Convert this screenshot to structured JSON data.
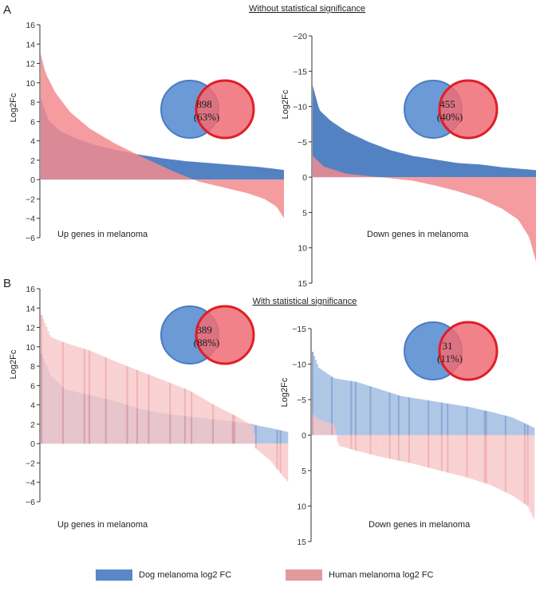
{
  "panels": [
    {
      "label": "A",
      "title": "Without statistical significance"
    },
    {
      "label": "B",
      "title": "With statistical significance"
    }
  ],
  "legend": {
    "dog": {
      "label": "Dog melanoma log2 FC",
      "color": "#5a87c6"
    },
    "human": {
      "label": "Human melanoma log2 FC",
      "color": "#e39a9c"
    }
  },
  "chart_data": [
    {
      "id": "A-up",
      "type": "area",
      "panel": "A",
      "ylabel": "Log2Fc",
      "xlabel": "Up genes in melanoma",
      "ylim": [
        -6,
        16
      ],
      "yticks": [
        -6,
        -4,
        -2,
        0,
        2,
        4,
        6,
        8,
        10,
        12,
        14,
        16
      ],
      "invert_y": false,
      "venn": {
        "line1": "898",
        "line2": "(63%)"
      },
      "series": [
        {
          "name": "Dog melanoma log2 FC",
          "x": [
            0,
            0.03,
            0.08,
            0.15,
            0.22,
            0.3,
            0.4,
            0.5,
            0.6,
            0.7,
            0.8,
            0.9,
            1.0
          ],
          "values": [
            8.5,
            6.2,
            5.0,
            4.2,
            3.6,
            3.1,
            2.6,
            2.2,
            1.9,
            1.7,
            1.5,
            1.3,
            1.0
          ]
        },
        {
          "name": "Human melanoma log2 FC",
          "x": [
            0,
            0.02,
            0.06,
            0.12,
            0.2,
            0.3,
            0.42,
            0.55,
            0.65,
            0.75,
            0.85,
            0.92,
            0.97,
            1.0
          ],
          "values": [
            13.0,
            11.0,
            9.0,
            7.0,
            5.3,
            3.8,
            2.3,
            0.8,
            -0.2,
            -0.8,
            -1.4,
            -2.0,
            -2.8,
            -4.0
          ]
        }
      ]
    },
    {
      "id": "A-down",
      "type": "area",
      "panel": "A",
      "ylabel": "Log2Fc",
      "xlabel": "Down genes in melanoma",
      "ylim": [
        -20,
        15
      ],
      "yticks": [
        -20,
        -15,
        -10,
        -5,
        0,
        5,
        10,
        15
      ],
      "invert_y": true,
      "venn": {
        "line1": "455",
        "line2": "(40%)"
      },
      "series": [
        {
          "name": "Dog melanoma log2 FC",
          "x": [
            0,
            0.03,
            0.08,
            0.15,
            0.25,
            0.35,
            0.45,
            0.55,
            0.65,
            0.75,
            0.85,
            1.0
          ],
          "values": [
            -13,
            -9.5,
            -8,
            -6.5,
            -5,
            -3.8,
            -3,
            -2.5,
            -2,
            -1.8,
            -1.4,
            -1.0
          ]
        },
        {
          "name": "Human melanoma log2 FC",
          "x": [
            0,
            0.05,
            0.15,
            0.3,
            0.45,
            0.55,
            0.65,
            0.75,
            0.85,
            0.92,
            0.97,
            1.0
          ],
          "values": [
            -3,
            -1.5,
            -0.5,
            0,
            0.5,
            1.2,
            2,
            3,
            4.5,
            6,
            8.5,
            12
          ]
        }
      ]
    },
    {
      "id": "B-up",
      "type": "bar",
      "panel": "B",
      "ylabel": "Log2Fc",
      "xlabel": "Up genes in melanoma",
      "ylim": [
        -6,
        16
      ],
      "yticks": [
        -6,
        -4,
        -2,
        0,
        2,
        4,
        6,
        8,
        10,
        12,
        14,
        16
      ],
      "invert_y": false,
      "venn": {
        "line1": "389",
        "line2": "(88%)"
      },
      "series": [
        {
          "name": "Dog melanoma log2 FC",
          "x": [
            0,
            0.04,
            0.1,
            0.2,
            0.3,
            0.4,
            0.5,
            0.6,
            0.7,
            0.8,
            0.86,
            0.87,
            0.93,
            1.0
          ],
          "values": [
            9.5,
            7,
            5.6,
            5.0,
            4.4,
            3.6,
            3.1,
            2.8,
            2.5,
            2.2,
            2.0,
            1.9,
            1.6,
            1.2
          ]
        },
        {
          "name": "Human melanoma log2 FC",
          "x": [
            0,
            0.04,
            0.1,
            0.2,
            0.3,
            0.4,
            0.5,
            0.6,
            0.7,
            0.8,
            0.86,
            0.87,
            0.93,
            1.0
          ],
          "values": [
            13.5,
            11,
            10.4,
            9.6,
            8.5,
            7.5,
            6.5,
            5.5,
            4.0,
            2.7,
            1.8,
            -0.5,
            -1.8,
            -4.0
          ]
        }
      ]
    },
    {
      "id": "B-down",
      "type": "bar",
      "panel": "B",
      "ylabel": "Log2Fc",
      "xlabel": "Down genes in melanoma",
      "ylim": [
        -15,
        15
      ],
      "yticks": [
        -15,
        -10,
        -5,
        0,
        5,
        10,
        15
      ],
      "invert_y": true,
      "venn": {
        "line1": "31",
        "line2": "(11%)"
      },
      "series": [
        {
          "name": "Dog melanoma log2 FC",
          "x": [
            0,
            0.03,
            0.1,
            0.2,
            0.3,
            0.4,
            0.5,
            0.6,
            0.7,
            0.8,
            0.9,
            1.0
          ],
          "values": [
            -12,
            -9.5,
            -8.0,
            -7.5,
            -6.5,
            -5.5,
            -5.0,
            -4.5,
            -4.0,
            -3.3,
            -2.5,
            -1.0
          ]
        },
        {
          "name": "Human melanoma log2 FC",
          "x": [
            0,
            0.03,
            0.1,
            0.12,
            0.2,
            0.3,
            0.45,
            0.55,
            0.7,
            0.8,
            0.9,
            0.97,
            1.0
          ],
          "values": [
            -3,
            -2.2,
            -1.5,
            1.5,
            2.2,
            3.0,
            4.0,
            4.8,
            6.0,
            7.0,
            8.5,
            10.0,
            12.0
          ]
        }
      ]
    }
  ]
}
